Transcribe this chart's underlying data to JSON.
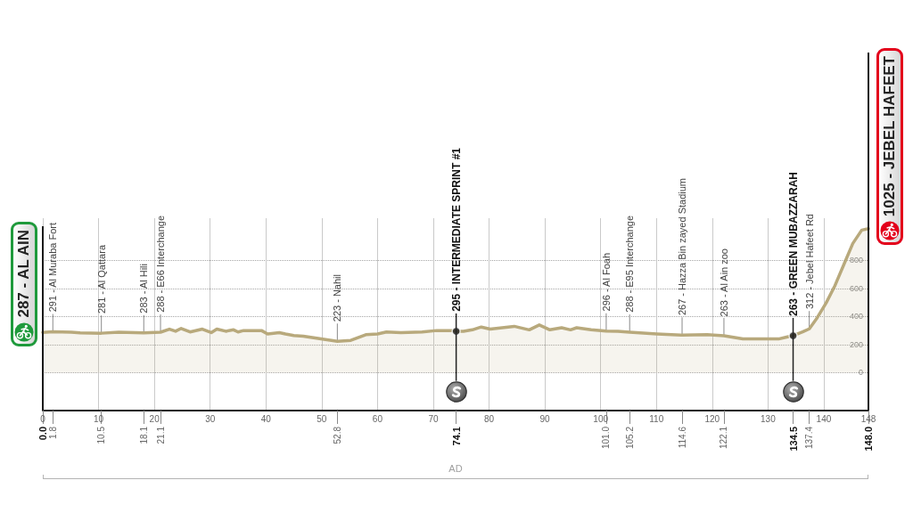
{
  "chart_data": {
    "type": "area",
    "x": [
      0,
      1.8,
      5.1,
      6.7,
      10.5,
      13.6,
      18.1,
      21.1,
      22.7,
      23.8,
      24.8,
      26.4,
      28.6,
      30.2,
      31.2,
      32.8,
      34.2,
      35,
      36,
      39.2,
      40.3,
      42.4,
      43.5,
      45,
      46.7,
      49.9,
      52.8,
      55.2,
      57.9,
      60,
      61.6,
      64.2,
      68,
      70.6,
      73.3,
      74.1,
      75.4,
      77,
      78.6,
      80.2,
      84.5,
      87.2,
      89,
      90.9,
      93,
      94.6,
      95.7,
      98.3,
      101,
      103.1,
      105.2,
      110.1,
      114.6,
      119.1,
      122.1,
      125.5,
      129.8,
      131.9,
      133.5,
      134.5,
      136.2,
      137.4,
      138.8,
      140.4,
      142,
      143.6,
      145.2,
      146.8,
      148
    ],
    "series": [
      {
        "color": "#b8a97c",
        "values": [
          287,
          291,
          288,
          284,
          281,
          288,
          283,
          288,
          310,
          295,
          315,
          290,
          310,
          285,
          310,
          295,
          305,
          290,
          300,
          300,
          275,
          285,
          275,
          265,
          260,
          240,
          223,
          230,
          270,
          275,
          290,
          285,
          290,
          300,
          300,
          295,
          295,
          305,
          325,
          310,
          330,
          305,
          340,
          305,
          320,
          305,
          320,
          305,
          296,
          295,
          288,
          275,
          267,
          270,
          263,
          240,
          240,
          240,
          255,
          263,
          290,
          312,
          390,
          495,
          620,
          770,
          920,
          1015,
          1025
        ]
      },
      {
        "type": "scatter",
        "color": "#1a1a1a",
        "marker": "circle",
        "x": [
          74.1,
          134.5
        ],
        "values": [
          295,
          263
        ]
      }
    ],
    "xlim": [
      0,
      148
    ],
    "xticks": [
      0,
      10,
      20,
      30,
      40,
      50,
      60,
      70,
      80,
      90,
      100,
      110,
      120,
      130,
      140,
      148
    ],
    "x2lim": [
      0,
      148
    ],
    "x2ticks": [
      {
        "value": 0,
        "label": "0.0"
      },
      1.8,
      10.5,
      18.1,
      21.1,
      52.8,
      74.1,
      {
        "value": 101,
        "label": "101.0"
      },
      105.2,
      114.6,
      122.1,
      134.5,
      137.4,
      {
        "value": 148,
        "label": "148.0"
      }
    ],
    "ylim": [
      -270,
      1100
    ],
    "yticks": [
      0,
      200,
      400,
      600,
      800
    ],
    "grid": true,
    "annotations": [
      {
        "text": "287 - AL AIN",
        "x": 0,
        "y": 287
      },
      {
        "text": "291 - Al Muraba Fort",
        "x": 1.8,
        "y": 291
      },
      {
        "text": "281 - Al Qattara",
        "x": 10.5,
        "y": 281
      },
      {
        "text": "283 - Al Hili",
        "x": 18.1,
        "y": 283
      },
      {
        "text": "288 - E66 Interchange",
        "x": 21.1,
        "y": 288
      },
      {
        "text": "223 - Nahil",
        "x": 52.8,
        "y": 223
      },
      {
        "text": "295 - INTERMEDIATE SPRINT #1",
        "x": 74.1,
        "y": 295
      },
      {
        "text": "296 - Al Foah",
        "x": 101,
        "y": 296
      },
      {
        "text": "288 - E95 Interchange",
        "x": 105.2,
        "y": 288
      },
      {
        "text": "267 - Hazza Bin zayed Stadium",
        "x": 114.6,
        "y": 267
      },
      {
        "text": "263 - Al Ain zoo",
        "x": 122.1,
        "y": 263
      },
      {
        "text": "263 - GREEN MUBAZZARAH",
        "x": 134.5,
        "y": 263
      },
      {
        "text": "312 - Jebel Hafeet Rd",
        "x": 137.4,
        "y": 312
      },
      {
        "text": "1025 - JEBEL HAFEET",
        "x": 148,
        "y": 1025
      },
      "AD"
    ]
  }
}
